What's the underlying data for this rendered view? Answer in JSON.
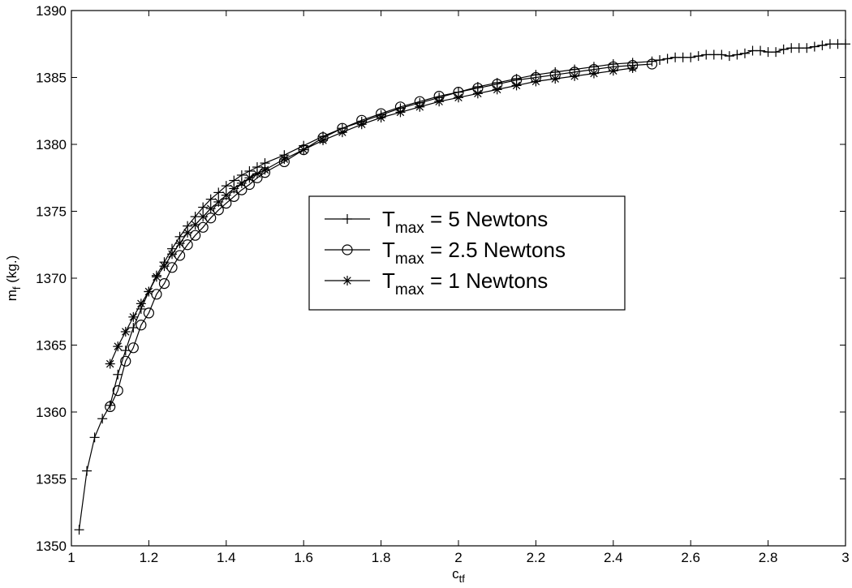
{
  "chart_data": {
    "type": "line",
    "title": "",
    "xlabel": {
      "base": "c",
      "sub": "tf"
    },
    "ylabel": {
      "base": "m",
      "sub": "f",
      "suffix": " (kg.)"
    },
    "xlim": [
      1,
      3
    ],
    "ylim": [
      1350,
      1390
    ],
    "xticks": [
      1,
      1.2,
      1.4,
      1.6,
      1.8,
      2,
      2.2,
      2.4,
      2.6,
      2.8,
      3
    ],
    "xtick_labels": [
      "1",
      "1.2",
      "1.4",
      "1.6",
      "1.8",
      "2",
      "2.2",
      "2.4",
      "2.6",
      "2.8",
      "3"
    ],
    "yticks": [
      1350,
      1355,
      1360,
      1365,
      1370,
      1375,
      1380,
      1385,
      1390
    ],
    "ytick_labels": [
      "1350",
      "1355",
      "1360",
      "1365",
      "1370",
      "1375",
      "1380",
      "1385",
      "1390"
    ],
    "grid": false,
    "legend_position": "center",
    "series": [
      {
        "name": "T_max = 5 Newtons",
        "legend": {
          "base": "T",
          "sub": "max",
          "rest": " = 5 Newtons"
        },
        "marker": "plus",
        "x": [
          1.02,
          1.04,
          1.06,
          1.08,
          1.1,
          1.12,
          1.14,
          1.16,
          1.18,
          1.2,
          1.22,
          1.24,
          1.26,
          1.28,
          1.3,
          1.32,
          1.34,
          1.36,
          1.38,
          1.4,
          1.42,
          1.44,
          1.46,
          1.48,
          1.5,
          1.55,
          1.6,
          1.65,
          1.7,
          1.75,
          1.8,
          1.85,
          1.9,
          1.95,
          2.0,
          2.05,
          2.1,
          2.15,
          2.2,
          2.25,
          2.3,
          2.35,
          2.4,
          2.45,
          2.5,
          2.52,
          2.54,
          2.56,
          2.58,
          2.6,
          2.62,
          2.64,
          2.66,
          2.68,
          2.7,
          2.72,
          2.74,
          2.76,
          2.78,
          2.8,
          2.82,
          2.84,
          2.86,
          2.88,
          2.9,
          2.92,
          2.94,
          2.96,
          2.98,
          3.0
        ],
        "y": [
          1351.2,
          1355.6,
          1358.1,
          1359.5,
          1360.5,
          1362.8,
          1364.6,
          1366.3,
          1367.7,
          1369.0,
          1370.2,
          1371.2,
          1372.2,
          1373.1,
          1373.9,
          1374.6,
          1375.3,
          1375.9,
          1376.4,
          1376.9,
          1377.3,
          1377.7,
          1378.0,
          1378.3,
          1378.6,
          1379.2,
          1379.9,
          1380.6,
          1381.2,
          1381.7,
          1382.2,
          1382.7,
          1383.1,
          1383.5,
          1383.9,
          1384.3,
          1384.6,
          1384.9,
          1385.2,
          1385.4,
          1385.6,
          1385.8,
          1386.0,
          1386.1,
          1386.2,
          1386.3,
          1386.4,
          1386.5,
          1386.5,
          1386.5,
          1386.6,
          1386.7,
          1386.7,
          1386.7,
          1386.6,
          1386.7,
          1386.8,
          1387.0,
          1387.0,
          1386.9,
          1386.9,
          1387.1,
          1387.2,
          1387.2,
          1387.2,
          1387.3,
          1387.4,
          1387.5,
          1387.5,
          1387.5
        ]
      },
      {
        "name": "T_max = 2.5 Newtons",
        "legend": {
          "base": "T",
          "sub": "max",
          "rest": " = 2.5 Newtons"
        },
        "marker": "circle",
        "x": [
          1.1,
          1.12,
          1.14,
          1.16,
          1.18,
          1.2,
          1.22,
          1.24,
          1.26,
          1.28,
          1.3,
          1.32,
          1.34,
          1.36,
          1.38,
          1.4,
          1.42,
          1.44,
          1.46,
          1.48,
          1.5,
          1.55,
          1.6,
          1.65,
          1.7,
          1.75,
          1.8,
          1.85,
          1.9,
          1.95,
          2.0,
          2.05,
          2.1,
          2.15,
          2.2,
          2.25,
          2.3,
          2.35,
          2.4,
          2.45,
          2.5
        ],
        "y": [
          1360.4,
          1361.6,
          1363.8,
          1364.8,
          1366.5,
          1367.4,
          1368.8,
          1369.6,
          1370.8,
          1371.7,
          1372.5,
          1373.2,
          1373.8,
          1374.5,
          1375.1,
          1375.6,
          1376.1,
          1376.6,
          1377.0,
          1377.5,
          1377.9,
          1378.7,
          1379.6,
          1380.5,
          1381.2,
          1381.8,
          1382.3,
          1382.8,
          1383.2,
          1383.6,
          1383.9,
          1384.2,
          1384.5,
          1384.8,
          1385.0,
          1385.2,
          1385.4,
          1385.6,
          1385.8,
          1385.9,
          1386.0
        ]
      },
      {
        "name": "T_max = 1 Newtons",
        "legend": {
          "base": "T",
          "sub": "max",
          "rest": " = 1 Newtons"
        },
        "marker": "asterisk",
        "x": [
          1.1,
          1.12,
          1.14,
          1.16,
          1.18,
          1.2,
          1.22,
          1.24,
          1.26,
          1.28,
          1.3,
          1.32,
          1.34,
          1.36,
          1.38,
          1.4,
          1.42,
          1.44,
          1.46,
          1.48,
          1.5,
          1.55,
          1.6,
          1.65,
          1.7,
          1.75,
          1.8,
          1.85,
          1.9,
          1.95,
          2.0,
          2.05,
          2.1,
          2.15,
          2.2,
          2.25,
          2.3,
          2.35,
          2.4,
          2.45
        ],
        "y": [
          1363.6,
          1364.9,
          1366.0,
          1367.1,
          1368.1,
          1369.0,
          1370.1,
          1370.9,
          1371.8,
          1372.6,
          1373.4,
          1374.0,
          1374.6,
          1375.2,
          1375.7,
          1376.2,
          1376.7,
          1377.1,
          1377.5,
          1377.8,
          1378.1,
          1378.9,
          1379.6,
          1380.3,
          1380.9,
          1381.5,
          1382.0,
          1382.4,
          1382.8,
          1383.2,
          1383.5,
          1383.8,
          1384.1,
          1384.4,
          1384.7,
          1384.9,
          1385.1,
          1385.3,
          1385.5,
          1385.7
        ]
      }
    ]
  }
}
